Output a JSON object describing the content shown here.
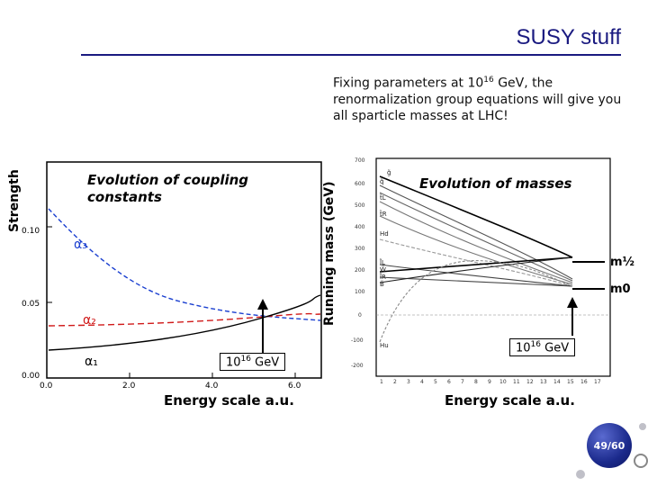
{
  "slide": {
    "title": "SUSY stuff",
    "intro_prefix": "Fixing parameters at 10",
    "intro_exp": "16",
    "intro_suffix": " GeV, the renormalization group equations will give you all sparticle masses at LHC!",
    "page": "49/60"
  },
  "left_plot": {
    "y_axis_label": "Strength",
    "title": "Evolution of coupling constants",
    "x_axis_label": "Energy scale a.u.",
    "y_ticks": [
      "0.10",
      "0.05",
      "0.00"
    ],
    "x_ticks": [
      "0.0",
      "2.0",
      "4.0",
      "6.0"
    ],
    "curve_labels": [
      "α₃",
      "α₂",
      "α₁"
    ],
    "gev_base": "10",
    "gev_exp": "16",
    "gev_unit": " GeV"
  },
  "right_plot": {
    "y_axis_label": "Running mass (GeV)",
    "title": "Evolution of masses",
    "x_axis_label": "Energy scale a.u.",
    "y_ticks": [
      "700",
      "600",
      "500",
      "400",
      "300",
      "200",
      "100",
      "0",
      "-100",
      "-200"
    ],
    "x_ticks": [
      "1",
      "2",
      "3",
      "4",
      "5",
      "6",
      "7",
      "8",
      "9",
      "10",
      "11",
      "12",
      "13",
      "14",
      "15",
      "16",
      "17"
    ],
    "curve_labels": [
      "g̃",
      "q̃",
      "t̃L",
      "t̃R",
      "Hd",
      "l̃L",
      "W̃",
      "l̃R",
      "B̃",
      "Hu"
    ],
    "m_half_label": "m½",
    "m_zero_label": "m0",
    "gev_base": "10",
    "gev_exp": "16",
    "gev_unit": " GeV"
  },
  "colors": {
    "title": "#1a1a80",
    "alpha3": "#1a3fd0",
    "alpha2": "#d01a1a",
    "alpha1": "#000000"
  }
}
